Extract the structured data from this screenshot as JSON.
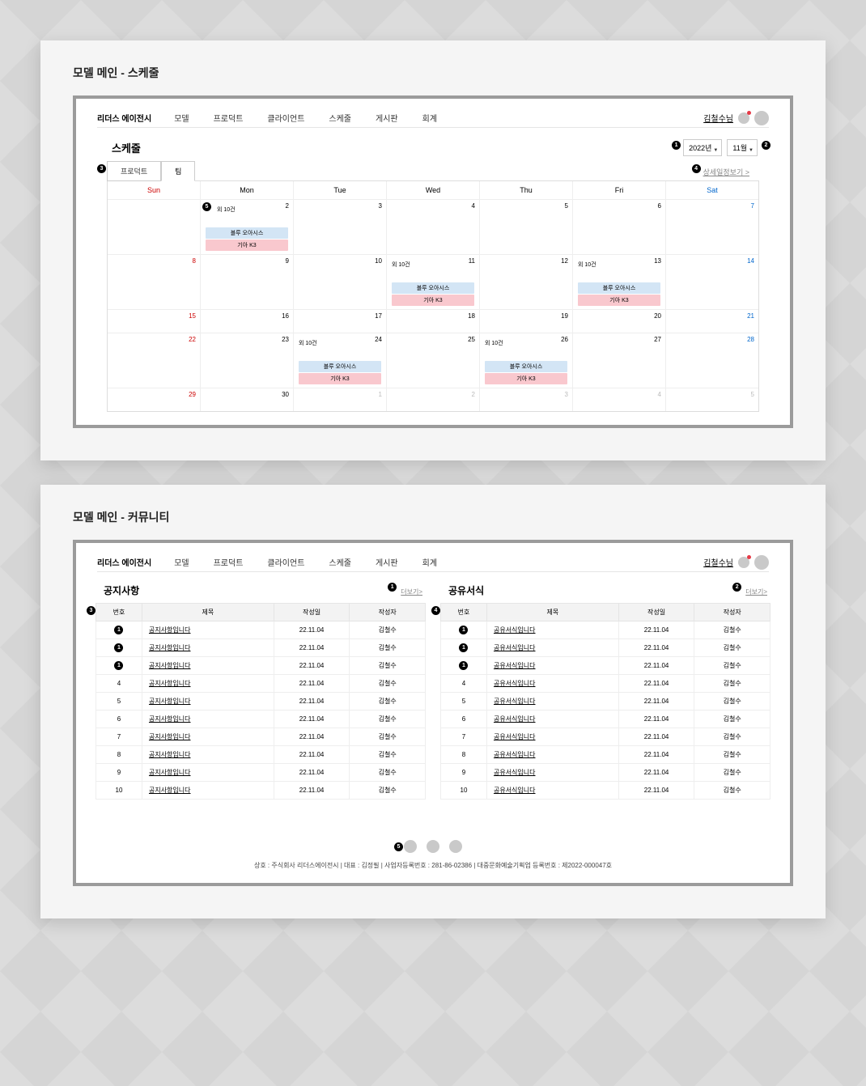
{
  "panel1_title": "모델 메인 - 스케줄",
  "panel2_title": "모델 메인 - 커뮤니티",
  "brand": "리더스 에이전시",
  "nav": [
    "모델",
    "프로덕트",
    "클라이언트",
    "스케줄",
    "게시판",
    "회계"
  ],
  "username": "김철수",
  "username_suffix": "님",
  "schedule_title": "스케줄",
  "year_label": "2022년",
  "month_label": "11월",
  "tab_product": "프로덕트",
  "tab_team": "팀",
  "detail_link": "상세일정보기 >",
  "days": [
    "Sun",
    "Mon",
    "Tue",
    "Wed",
    "Thu",
    "Fri",
    "Sat"
  ],
  "extra_label": "외 10건",
  "event_blue": "블루 오아시스",
  "event_pink": "기아 K3",
  "calendar_rows": [
    {
      "nums": [
        "",
        "2",
        "3",
        "4",
        "5",
        "6",
        "7"
      ],
      "events_col": 1,
      "sun": "",
      "sat_class": "sat"
    },
    {
      "nums": [
        "8",
        "9",
        "10",
        "11",
        "12",
        "13",
        "14"
      ],
      "events_cols": [
        3,
        5
      ],
      "sun_red": true,
      "sat_class": "sat"
    },
    {
      "nums": [
        "15",
        "16",
        "17",
        "18",
        "19",
        "20",
        "21"
      ],
      "sun_red": true,
      "sat_class": "sat",
      "short": true
    },
    {
      "nums": [
        "22",
        "23",
        "24",
        "25",
        "26",
        "27",
        "28"
      ],
      "events_cols": [
        2,
        4
      ],
      "sun_red": true,
      "sat_class": "sat"
    },
    {
      "nums": [
        "29",
        "30",
        "1",
        "2",
        "3",
        "4",
        "5"
      ],
      "grey_from": 2,
      "sun_red": true,
      "short": true
    }
  ],
  "notice_title": "공지사항",
  "share_title": "공유서식",
  "more_label": "더보기>",
  "cols": [
    "번호",
    "제목",
    "작성일",
    "작성자"
  ],
  "notice_subject": "공지사항입니다",
  "share_subject": "공유서식입니다",
  "date": "22.11.04",
  "author": "김철수",
  "row_count": 10,
  "badge_rows": [
    1,
    2,
    3
  ],
  "footer": "상호 : 주식회사 리더스에이전시 | 대표 : 김정필 | 사업자등록번호 : 281-86-02386 | 대중문화예술기획업 등록번호 : 제2022-000047호",
  "colors": {
    "accent_blue": "#d3e5f5",
    "accent_pink": "#f9c8ce",
    "sun": "#c00",
    "sat": "#0066cc",
    "badge_bg": "#000000"
  }
}
